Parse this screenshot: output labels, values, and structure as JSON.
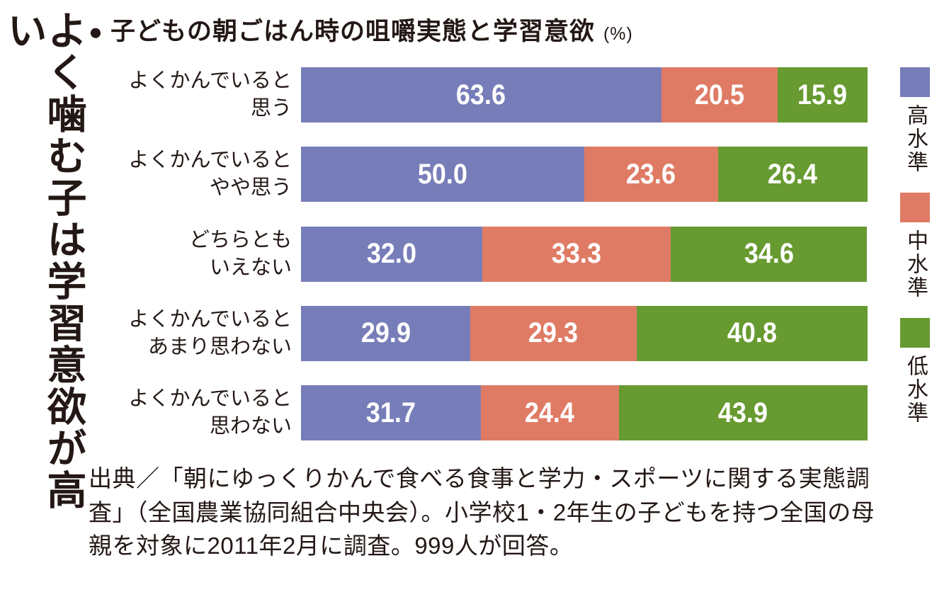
{
  "headline": "よく噛む子は学習意欲が高い",
  "title": {
    "bullet": "●",
    "text": "子どもの朝ごはん時の咀嚼実態と学習意欲",
    "unit": "(%)"
  },
  "source": "出典／「朝にゆっくりかんで食べる食事と学力・スポーツに関する実態調査」（全国農業協同組合中央会）。小学校1・2年生の子どもを持つ全国の母親を対象に2011年2月に調査。999人が回答。",
  "chart_data": {
    "type": "bar",
    "orientation": "horizontal-stacked",
    "title": "子どもの朝ごはん時の咀嚼実態と学習意欲",
    "unit": "%",
    "xlim": [
      0,
      100
    ],
    "grid": false,
    "legend_position": "right-vertical",
    "value_labels": "inside-white",
    "categories": [
      "よくかんでいると\n思う",
      "よくかんでいると\nやや思う",
      "どちらとも\nいえない",
      "よくかんでいると\nあまり思わない",
      "よくかんでいると\n思わない"
    ],
    "series": [
      {
        "name": "高水準",
        "color": "#767DB8",
        "values": [
          63.6,
          50.0,
          32.0,
          29.9,
          31.7
        ]
      },
      {
        "name": "中水準",
        "color": "#DF7B65",
        "values": [
          20.5,
          23.6,
          33.3,
          29.3,
          24.4
        ]
      },
      {
        "name": "低水準",
        "color": "#679A30",
        "values": [
          15.9,
          26.4,
          34.6,
          40.8,
          43.9
        ]
      }
    ]
  }
}
